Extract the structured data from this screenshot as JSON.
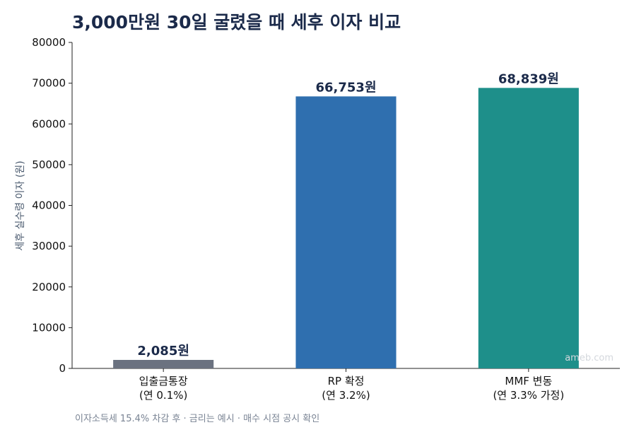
{
  "chart_data": {
    "type": "bar",
    "title": "3,000만원 30일 굴렸을 때 세후 이자 비교",
    "ylabel": "세후 실수령 이자 (원)",
    "xlabel": "",
    "ylim": [
      0,
      80000
    ],
    "yticks": [
      "0",
      "10000",
      "20000",
      "30000",
      "40000",
      "50000",
      "60000",
      "70000",
      "80000"
    ],
    "categories": [
      {
        "line1": "입출금통장",
        "line2": "(연 0.1%)"
      },
      {
        "line1": "RP 확정",
        "line2": "(연 3.2%)"
      },
      {
        "line1": "MMF 변동",
        "line2": "(연 3.3% 가정)"
      }
    ],
    "values": [
      2085,
      66753,
      68839
    ],
    "value_labels": [
      "2,085원",
      "66,753원",
      "68,839원"
    ],
    "colors": [
      "#6b7280",
      "#2f6faf",
      "#1e8f8a"
    ],
    "grid": false,
    "legend": "none"
  },
  "footnote": "이자소득세 15.4% 차감 후 · 금리는 예시 · 매수 시점 공시 확인",
  "watermark": "ameb.com"
}
